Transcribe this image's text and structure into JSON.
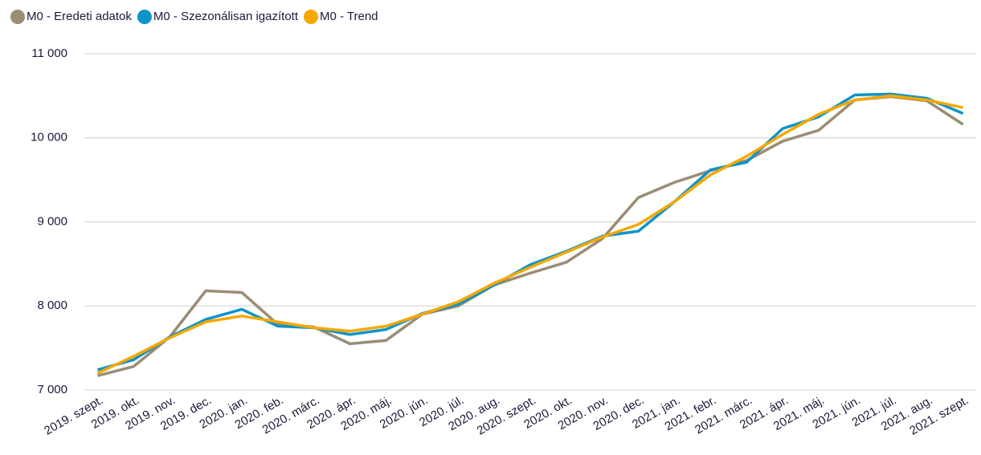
{
  "chart_data": {
    "type": "line",
    "categories": [
      "2019. szept.",
      "2019. okt.",
      "2019. nov.",
      "2019. dec.",
      "2020. jan.",
      "2020. feb.",
      "2020. márc.",
      "2020. ápr.",
      "2020. máj.",
      "2020. jún.",
      "2020. júl.",
      "2020. aug.",
      "2020. szept.",
      "2020. okt.",
      "2020. nov.",
      "2020. dec.",
      "2021. jan.",
      "2021. febr.",
      "2021. márc.",
      "2021. ápr.",
      "2021. máj.",
      "2021. jún.",
      "2021. júl.",
      "2021. aug.",
      "2021. szept."
    ],
    "series": [
      {
        "name": "M0 - Eredeti adatok",
        "color": "#9b8c74",
        "values": [
          7170,
          7280,
          7630,
          8180,
          8160,
          7780,
          7750,
          7550,
          7590,
          7900,
          8000,
          8250,
          8390,
          8520,
          8800,
          9290,
          9470,
          9610,
          9730,
          9960,
          10090,
          10450,
          10490,
          10440,
          10160
        ]
      },
      {
        "name": "M0 - Szezonálisan igazított",
        "color": "#0e94c9",
        "values": [
          7240,
          7360,
          7630,
          7840,
          7960,
          7760,
          7740,
          7660,
          7720,
          7910,
          8020,
          8250,
          8490,
          8650,
          8830,
          8890,
          9240,
          9620,
          9710,
          10110,
          10250,
          10510,
          10520,
          10470,
          10290
        ]
      },
      {
        "name": "M0 - Trend",
        "color": "#f5a800",
        "values": [
          7200,
          7400,
          7620,
          7810,
          7880,
          7810,
          7740,
          7700,
          7760,
          7900,
          8050,
          8270,
          8460,
          8640,
          8820,
          8970,
          9240,
          9560,
          9780,
          10040,
          10280,
          10450,
          10500,
          10450,
          10360
        ]
      }
    ],
    "ylim": [
      7000,
      11000
    ],
    "yticks": [
      {
        "value": 7000,
        "label": "7 000"
      },
      {
        "value": 8000,
        "label": "8 000"
      },
      {
        "value": 9000,
        "label": "9 000"
      },
      {
        "value": 10000,
        "label": "10 000"
      },
      {
        "value": 11000,
        "label": "11 000"
      }
    ],
    "grid": true,
    "legend": "top-left"
  }
}
